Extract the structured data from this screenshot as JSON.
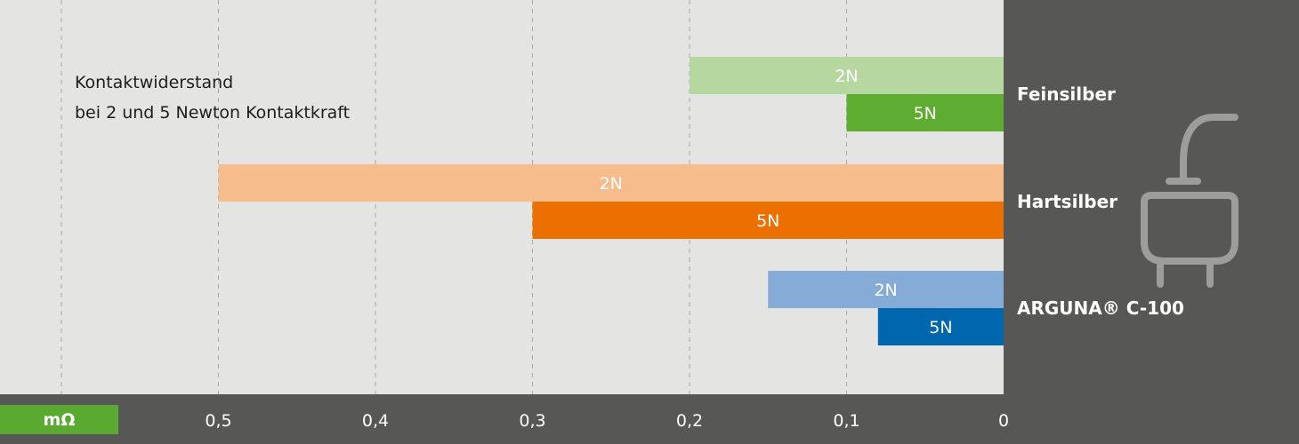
{
  "chart_data": {
    "type": "bar",
    "orientation": "horizontal",
    "x_direction": "reversed",
    "title_lines": [
      "Kontaktwiderstand",
      "bei 2 und 5 Newton Kontaktkraft"
    ],
    "unit": "mΩ",
    "xlim": [
      0,
      0.6
    ],
    "ticks": [
      {
        "value": 0.5,
        "label": "0,5"
      },
      {
        "value": 0.4,
        "label": "0,4"
      },
      {
        "value": 0.3,
        "label": "0,3"
      },
      {
        "value": 0.2,
        "label": "0,2"
      },
      {
        "value": 0.1,
        "label": "0,1"
      },
      {
        "value": 0,
        "label": "0"
      }
    ],
    "grid": "dashed-vertical",
    "categories": [
      {
        "name": "Feinsilber",
        "bars": [
          {
            "label": "2N",
            "value": 0.2,
            "color": "#b7d7a0"
          },
          {
            "label": "5N",
            "value": 0.1,
            "color": "#5fac32"
          }
        ]
      },
      {
        "name": "Hartsilber",
        "bars": [
          {
            "label": "2N",
            "value": 0.5,
            "color": "#f7bc8b"
          },
          {
            "label": "5N",
            "value": 0.3,
            "color": "#ec7000"
          }
        ]
      },
      {
        "name": "ARGUNA® C-100",
        "bars": [
          {
            "label": "2N",
            "value": 0.15,
            "color": "#84acd6"
          },
          {
            "label": "5N",
            "value": 0.08,
            "color": "#0066ae"
          }
        ]
      }
    ]
  },
  "colors": {
    "plot_background": "#e4e4e2",
    "frame_background": "#575756",
    "unit_box": "#5aaa31",
    "icon": "#9d9d9c"
  },
  "icon": "plug-icon"
}
